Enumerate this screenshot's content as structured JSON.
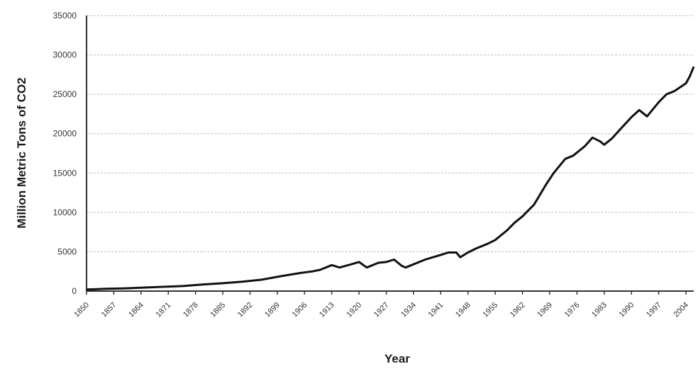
{
  "chart_data": {
    "type": "line",
    "title": "",
    "xlabel": "Year",
    "ylabel": "Million Metric Tons of CO2",
    "ylim": [
      0,
      35000
    ],
    "xlim": [
      1850,
      2006
    ],
    "grid": true,
    "yticks": [
      0,
      5000,
      10000,
      15000,
      20000,
      25000,
      30000,
      35000
    ],
    "xticks": [
      "1850",
      "1857",
      "1864",
      "1871",
      "1878",
      "1885",
      "1892",
      "1899",
      "1906",
      "1913",
      "1920",
      "1927",
      "1934",
      "1941",
      "1948",
      "1955",
      "1962",
      "1969",
      "1976",
      "1983",
      "1990",
      "1997",
      "2004"
    ],
    "series": [
      {
        "name": "",
        "x": [
          1850,
          1855,
          1860,
          1865,
          1870,
          1875,
          1880,
          1885,
          1890,
          1895,
          1900,
          1905,
          1908,
          1910,
          1913,
          1915,
          1918,
          1920,
          1922,
          1925,
          1927,
          1929,
          1931,
          1932,
          1934,
          1937,
          1939,
          1941,
          1943,
          1945,
          1946,
          1948,
          1950,
          1953,
          1955,
          1958,
          1960,
          1962,
          1965,
          1968,
          1970,
          1973,
          1975,
          1978,
          1980,
          1982,
          1983,
          1985,
          1987,
          1990,
          1992,
          1994,
          1997,
          1999,
          2001,
          2004,
          2005,
          2006
        ],
        "values": [
          200,
          300,
          350,
          450,
          550,
          650,
          850,
          1000,
          1200,
          1450,
          1900,
          2300,
          2500,
          2700,
          3300,
          3000,
          3400,
          3700,
          3000,
          3600,
          3700,
          4000,
          3200,
          3000,
          3400,
          4000,
          4300,
          4600,
          4900,
          4900,
          4300,
          4900,
          5400,
          6000,
          6500,
          7700,
          8700,
          9500,
          11000,
          13500,
          15000,
          16800,
          17200,
          18400,
          19500,
          19000,
          18600,
          19400,
          20500,
          22100,
          23000,
          22200,
          24000,
          25000,
          25400,
          26400,
          27300,
          28500
        ]
      }
    ]
  }
}
